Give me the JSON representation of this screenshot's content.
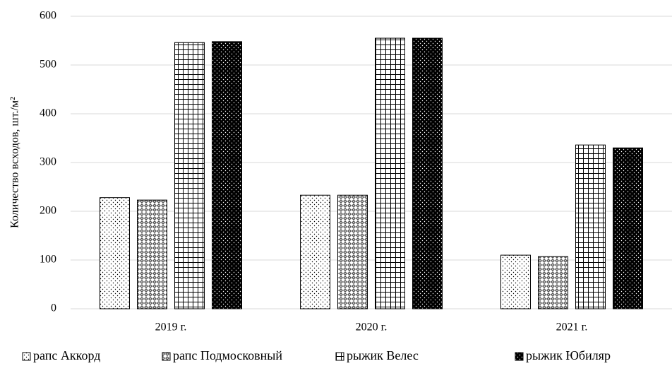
{
  "chart_data": {
    "type": "bar",
    "y_label": "Количество всходов, шт./м²",
    "categories": [
      "2019 г.",
      "2020 г.",
      "2021 г."
    ],
    "series": [
      {
        "name": "рапс Аккорд",
        "color": "#ffffff",
        "pattern": "dots",
        "values": [
          228,
          233,
          110
        ]
      },
      {
        "name": "рапс Подмосковный",
        "color": "#808080",
        "pattern": "diamonds",
        "values": [
          223,
          233,
          107
        ]
      },
      {
        "name": "рыжик Велес",
        "color": "#ffffff",
        "pattern": "grid",
        "values": [
          546,
          555,
          336
        ]
      },
      {
        "name": "рыжик Юбиляр",
        "color": "#000000",
        "pattern": "dots",
        "values": [
          548,
          555,
          330
        ]
      }
    ],
    "ylim": [
      0,
      600
    ],
    "yticks": [
      0,
      100,
      200,
      300,
      400,
      500,
      600
    ],
    "grid": true,
    "legend": "bottom"
  }
}
